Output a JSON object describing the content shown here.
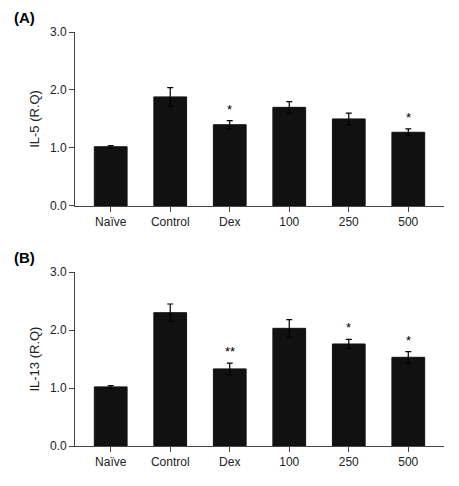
{
  "chart_data": [
    {
      "type": "bar",
      "title": "(A)",
      "ylabel": "IL-5 (R.Q)",
      "categories": [
        "Naïve",
        "Control",
        "Dex",
        "100",
        "250",
        "500"
      ],
      "values": [
        1.02,
        1.88,
        1.4,
        1.7,
        1.5,
        1.27
      ],
      "errors": [
        0.02,
        0.16,
        0.07,
        0.1,
        0.1,
        0.06
      ],
      "annotations": [
        {
          "category": "Dex",
          "text": "*"
        },
        {
          "category": "500",
          "text": "*"
        }
      ],
      "color": "#111111",
      "ylim": [
        0.0,
        3.0
      ],
      "yticks": [
        {
          "value": 0,
          "label": "0.0"
        },
        {
          "value": 1,
          "label": "1.0"
        },
        {
          "value": 2,
          "label": "2.0"
        },
        {
          "value": 3,
          "label": "3.0"
        }
      ],
      "grid": false
    },
    {
      "type": "bar",
      "title": "(B)",
      "ylabel": "IL-13 (R.Q)",
      "categories": [
        "Naïve",
        "Control",
        "Dex",
        "100",
        "250",
        "500"
      ],
      "values": [
        1.02,
        2.3,
        1.33,
        2.03,
        1.76,
        1.53
      ],
      "errors": [
        0.02,
        0.15,
        0.1,
        0.15,
        0.08,
        0.1
      ],
      "annotations": [
        {
          "category": "Dex",
          "text": "**"
        },
        {
          "category": "250",
          "text": "*"
        },
        {
          "category": "500",
          "text": "*"
        }
      ],
      "color": "#111111",
      "ylim": [
        0.0,
        3.0
      ],
      "yticks": [
        {
          "value": 0,
          "label": "0.0"
        },
        {
          "value": 1,
          "label": "1.0"
        },
        {
          "value": 2,
          "label": "2.0"
        },
        {
          "value": 3,
          "label": "3.0"
        }
      ],
      "grid": false
    }
  ]
}
